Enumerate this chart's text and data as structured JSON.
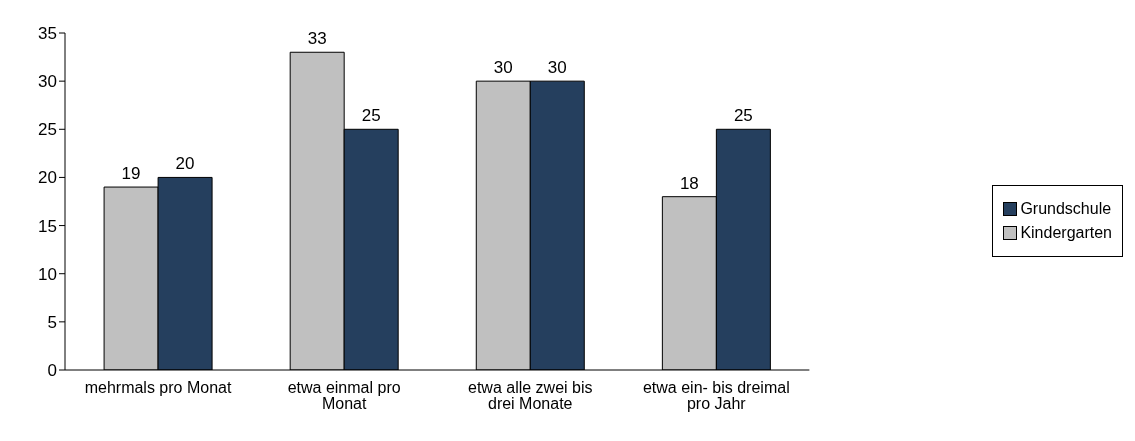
{
  "chart_data": {
    "type": "bar",
    "categories": [
      "mehrmals pro Monat",
      "etwa einmal pro Monat",
      "etwa alle zwei bis drei Monate",
      "etwa ein- bis dreimal pro Jahr"
    ],
    "series": [
      {
        "name": "Kindergarten",
        "color": "#c0c0c0",
        "values": [
          19,
          33,
          30,
          18
        ]
      },
      {
        "name": "Grundschule",
        "color": "#253f5e",
        "values": [
          20,
          25,
          30,
          25
        ]
      }
    ],
    "ylim": [
      0,
      35
    ],
    "yticks": [
      0,
      5,
      10,
      15,
      20,
      25,
      30,
      35
    ],
    "grid": false,
    "legend": "right",
    "data_labels": true
  }
}
